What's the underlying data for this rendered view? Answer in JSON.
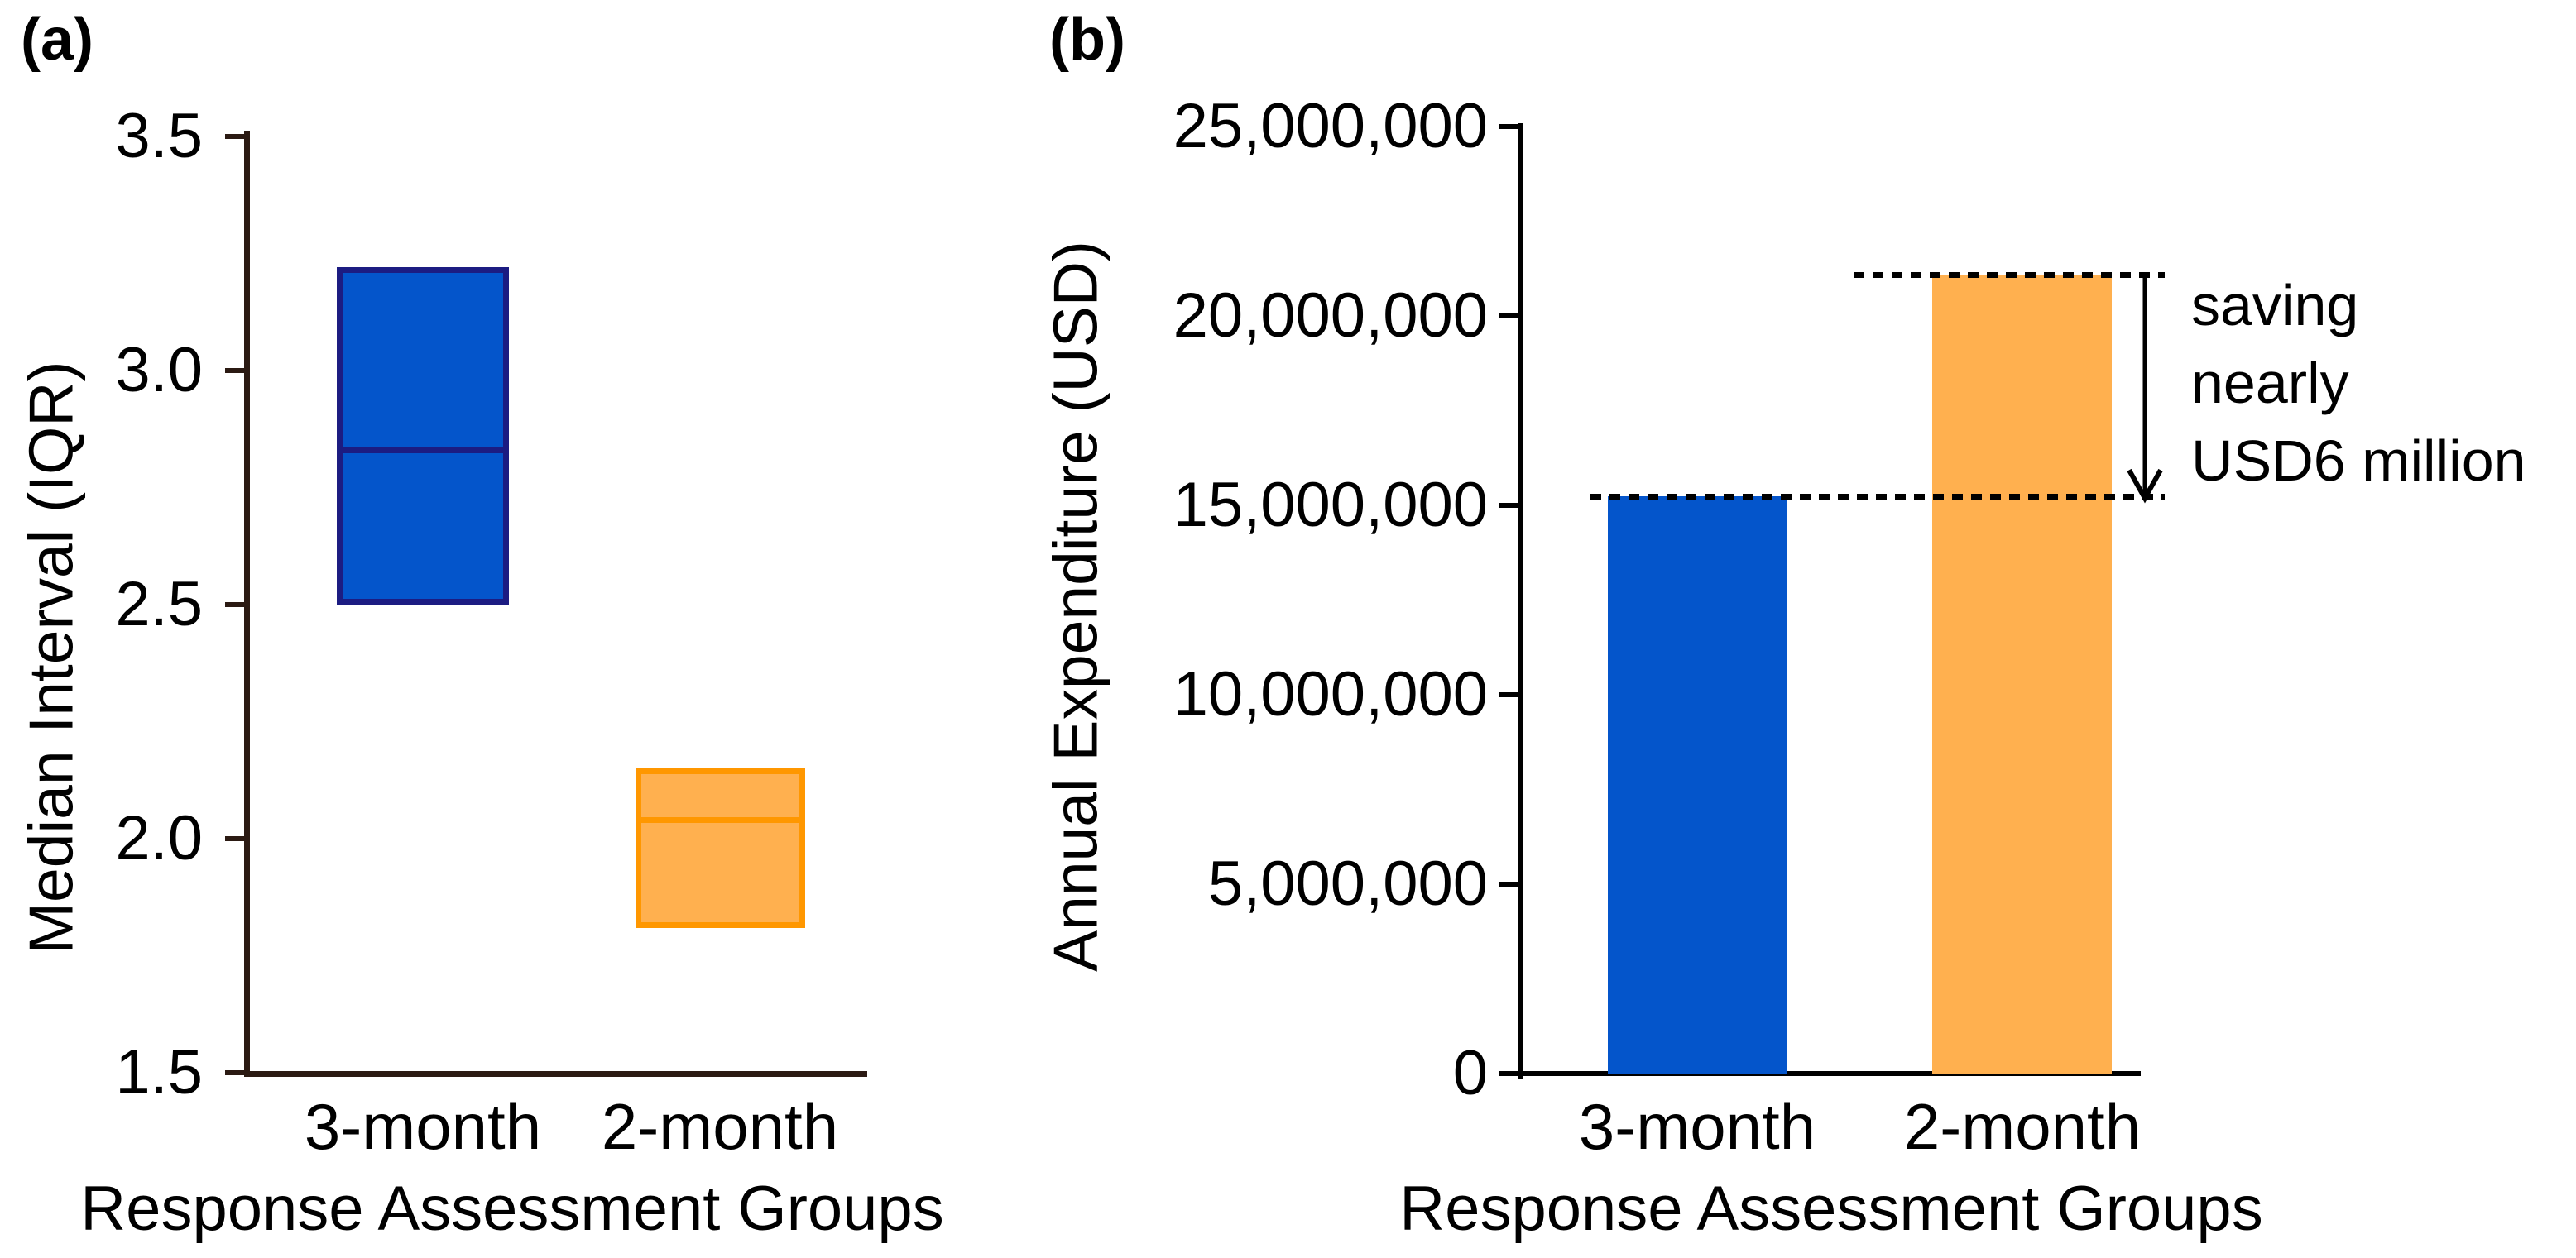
{
  "figure": {
    "panel_a_letter": "(a)",
    "panel_b_letter": "(b)"
  },
  "chart_data": [
    {
      "type": "box",
      "panel": "a",
      "ylabel": "Median Interval (IQR)",
      "xlabel": "Response Assessment Groups",
      "categories": [
        "3-month",
        "2-month"
      ],
      "ylim": [
        1.5,
        3.5
      ],
      "yticks": [
        3.5,
        3.0,
        2.5,
        2.0,
        1.5
      ],
      "ytick_labels": [
        "3.5",
        "3.0",
        "2.5",
        "2.0",
        "1.5"
      ],
      "grid": false,
      "boxes": [
        {
          "group": "3-month",
          "q1": 2.5,
          "median": 2.83,
          "q3": 3.22,
          "fill": "#0455CB",
          "border": "#1C1C82"
        },
        {
          "group": "2-month",
          "q1": 1.81,
          "median": 2.04,
          "q3": 2.15,
          "fill": "#FFB04F",
          "border": "#FF9700"
        }
      ]
    },
    {
      "type": "bar",
      "panel": "b",
      "ylabel": "Annual Expenditure (USD)",
      "xlabel": "Response Assessment Groups",
      "categories": [
        "3-month",
        "2-month"
      ],
      "ylim": [
        0,
        25000000
      ],
      "yticks": [
        25000000,
        20000000,
        15000000,
        10000000,
        5000000,
        0
      ],
      "ytick_labels": [
        "25,000,000",
        "20,000,000",
        "15,000,000",
        "10,000,000",
        "5,000,000",
        "0"
      ],
      "grid": false,
      "values": [
        15240000,
        21100000
      ],
      "bar_colors": [
        "#0455CB",
        "#FFB04F"
      ],
      "annotation": {
        "lines": [
          "saving",
          "nearly",
          "USD6 million"
        ],
        "arrow_from_value": 21100000,
        "arrow_to_value": 15240000
      }
    }
  ]
}
